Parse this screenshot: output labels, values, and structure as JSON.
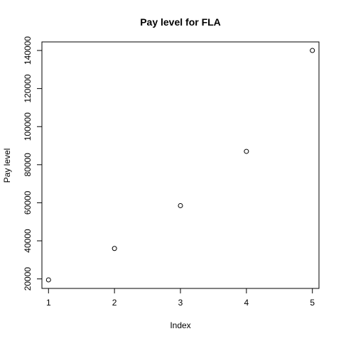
{
  "chart_data": {
    "type": "scatter",
    "title": "Pay level for  FLA",
    "xlabel": "Index",
    "ylabel": "Pay level",
    "x": [
      1,
      2,
      3,
      4,
      5
    ],
    "y": [
      19500,
      36000,
      58500,
      87000,
      140000
    ],
    "xlim": [
      0.9,
      5.1
    ],
    "ylim": [
      15000,
      144500
    ],
    "x_ticks": [
      1,
      2,
      3,
      4,
      5
    ],
    "y_ticks": [
      20000,
      40000,
      60000,
      80000,
      100000,
      120000,
      140000
    ],
    "grid": false,
    "legend": "none",
    "point_color": "#000000"
  }
}
